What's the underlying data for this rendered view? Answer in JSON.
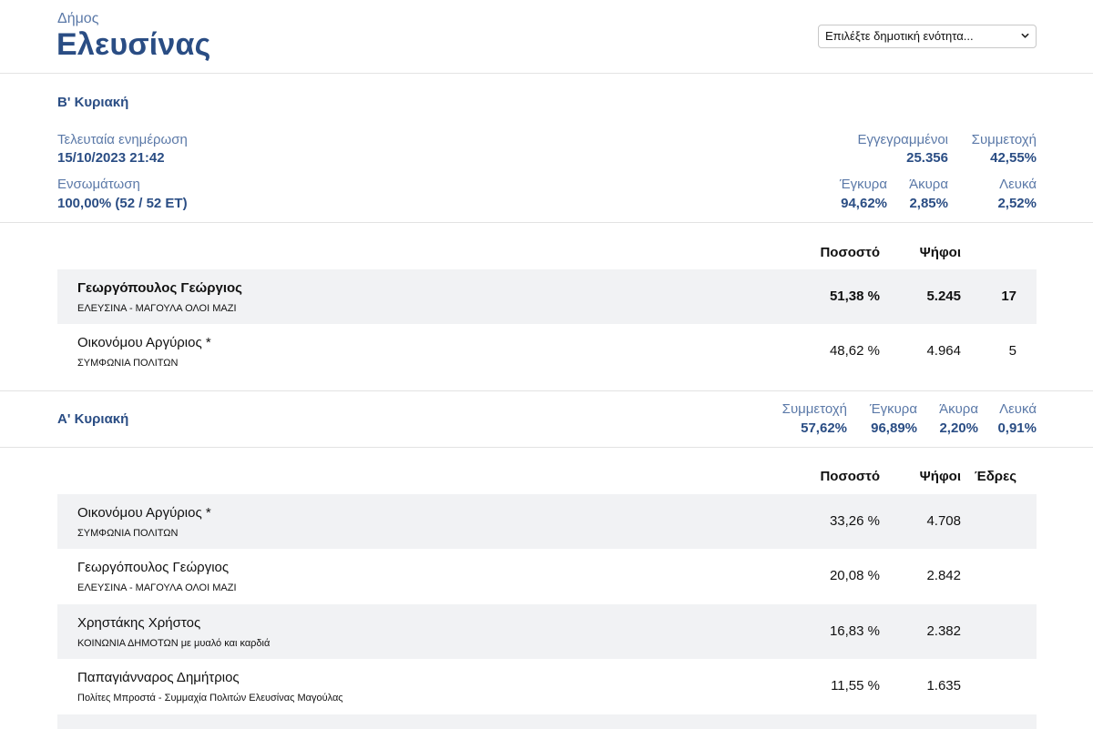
{
  "header": {
    "kicker": "Δήμος",
    "title": "Ελευσίνας",
    "select_value": "Επιλέξτε δημοτική ενότητα...",
    "select_icon": "chevron-down-icon"
  },
  "round_b": {
    "title": "Β' Κυριακή",
    "last_update_label": "Τελευταία ενημέρωση",
    "last_update_value": "15/10/2023 21:42",
    "integration_label": "Ενσωμάτωση",
    "integration_value": "100,00% (52 / 52 ΕΤ)",
    "registered_label": "Εγγεγραμμένοι",
    "registered_value": "25.356",
    "turnout_label": "Συμμετοχή",
    "turnout_value": "42,55%",
    "valid_label": "Έγκυρα",
    "valid_value": "94,62%",
    "invalid_label": "Άκυρα",
    "invalid_value": "2,85%",
    "blank_label": "Λευκά",
    "blank_value": "2,52%",
    "col_percent": "Ποσοστό",
    "col_votes": "Ψήφοι",
    "rows": [
      {
        "name": "Γεωργόπουλος Γεώργιος",
        "party": "ΕΛΕΥΣΙΝΑ - ΜΑΓΟΥΛΑ ΟΛΟΙ ΜΑΖΙ",
        "percent": "51,38 %",
        "votes": "5.245",
        "seats": "17"
      },
      {
        "name": "Οικονόμου Αργύριος *",
        "party": "ΣΥΜΦΩΝΙΑ ΠΟΛΙΤΩΝ",
        "percent": "48,62 %",
        "votes": "4.964",
        "seats": "5"
      }
    ]
  },
  "round_a": {
    "title": "Α' Κυριακή",
    "turnout_label": "Συμμετοχή",
    "turnout_value": "57,62%",
    "valid_label": "Έγκυρα",
    "valid_value": "96,89%",
    "invalid_label": "Άκυρα",
    "invalid_value": "2,20%",
    "blank_label": "Λευκά",
    "blank_value": "0,91%",
    "col_percent": "Ποσοστό",
    "col_votes": "Ψήφοι",
    "col_seats": "Έδρες",
    "rows": [
      {
        "name": "Οικονόμου Αργύριος *",
        "party": "ΣΥΜΦΩΝΙΑ ΠΟΛΙΤΩΝ",
        "percent": "33,26 %",
        "votes": "4.708"
      },
      {
        "name": "Γεωργόπουλος Γεώργιος",
        "party": "ΕΛΕΥΣΙΝΑ - ΜΑΓΟΥΛΑ ΟΛΟΙ ΜΑΖΙ",
        "percent": "20,08 %",
        "votes": "2.842"
      },
      {
        "name": "Χρηστάκης Χρήστος",
        "party": "ΚΟΙΝΩΝΙΑ ΔΗΜΟΤΩΝ με μυαλό και καρδιά",
        "percent": "16,83 %",
        "votes": "2.382"
      },
      {
        "name": "Παπαγιάνναρος Δημήτριος",
        "party": "Πολίτες Μπροστά - Συμμαχία Πολιτών Ελευσίνας Μαγούλας",
        "percent": "11,55 %",
        "votes": "1.635"
      }
    ]
  }
}
